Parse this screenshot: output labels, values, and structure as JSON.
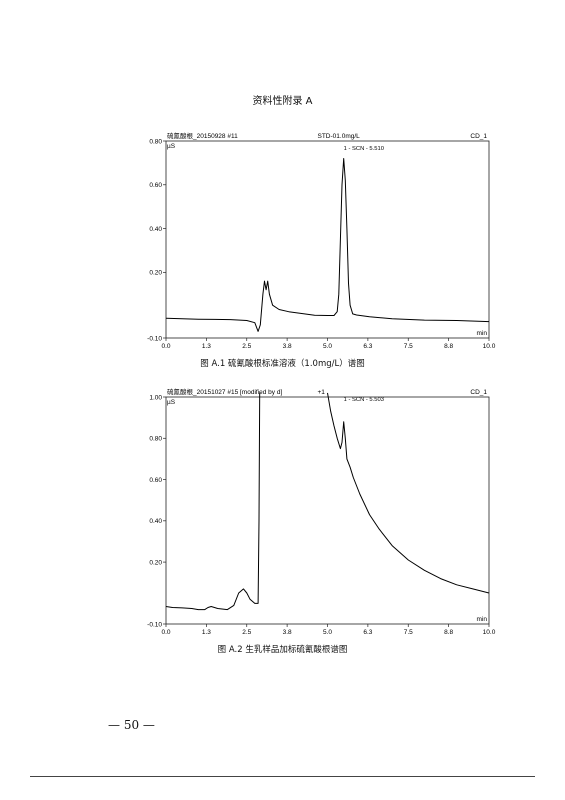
{
  "page": {
    "title": "资料性附录 A",
    "page_number": "— 50 —"
  },
  "chart_data": [
    {
      "type": "line",
      "header_left": "硫氰酸根_20150928 #11",
      "header_center": "STD-01.0mg/L",
      "header_right": "CD_1",
      "ylabel": "µS",
      "xlabel": "min",
      "caption": "图 A.1 硫氰酸根标准溶液（1.0mg/L）谱图",
      "xlim": [
        0,
        10
      ],
      "ylim": [
        -0.1,
        0.8
      ],
      "x_ticks": [
        "0.0",
        "1.3",
        "2.5",
        "3.8",
        "5.0",
        "6.3",
        "7.5",
        "8.8",
        "10.0"
      ],
      "y_ticks": [
        {
          "value": 0.8,
          "label": "0.80"
        },
        {
          "value": 0.6,
          "label": "0.60"
        },
        {
          "value": 0.4,
          "label": "0.40"
        },
        {
          "value": 0.2,
          "label": "0.20"
        },
        {
          "value": -0.1,
          "label": "-0.10"
        }
      ],
      "peak_label": "1 - SCN - 5.510",
      "peak_label_at": [
        5.5,
        0.76
      ],
      "series": [
        {
          "x": [
            0,
            0.5,
            1.0,
            1.5,
            2.0,
            2.5,
            2.75,
            2.85,
            2.92,
            3.0,
            3.05,
            3.1,
            3.15,
            3.2,
            3.3,
            3.5,
            3.8,
            4.2,
            4.6,
            5.0,
            5.2,
            5.3,
            5.35,
            5.4,
            5.45,
            5.5,
            5.55,
            5.6,
            5.65,
            5.7,
            5.78,
            5.9,
            6.3,
            7.0,
            8.0,
            9.0,
            10.0
          ],
          "y": [
            -0.01,
            -0.012,
            -0.014,
            -0.015,
            -0.016,
            -0.02,
            -0.03,
            -0.07,
            -0.04,
            0.1,
            0.16,
            0.12,
            0.16,
            0.1,
            0.05,
            0.03,
            0.02,
            0.012,
            0.004,
            0.003,
            0.003,
            0.02,
            0.1,
            0.35,
            0.6,
            0.72,
            0.62,
            0.4,
            0.15,
            0.05,
            0.01,
            0.005,
            -0.003,
            -0.012,
            -0.018,
            -0.02,
            -0.025
          ]
        }
      ]
    },
    {
      "type": "line",
      "header_left": "硫氰酸根_20151027 #15 [modified by d]",
      "header_center": "+1",
      "header_right": "CD_1",
      "ylabel": "µS",
      "xlabel": "min",
      "caption": "图 A.2 生乳样品加标硫氰酸根谱图",
      "xlim": [
        0,
        10
      ],
      "ylim": [
        -0.1,
        1.0
      ],
      "x_ticks": [
        "0.0",
        "1.3",
        "2.5",
        "3.8",
        "5.0",
        "6.3",
        "7.5",
        "8.8",
        "10.0"
      ],
      "y_ticks": [
        {
          "value": 1.0,
          "label": "1.00"
        },
        {
          "value": 0.8,
          "label": "0.80"
        },
        {
          "value": 0.6,
          "label": "0.60"
        },
        {
          "value": 0.4,
          "label": "0.40"
        },
        {
          "value": 0.2,
          "label": "0.20"
        },
        {
          "value": -0.1,
          "label": "-0.10"
        }
      ],
      "peak_label": "1 - SCN - 5.503",
      "peak_label_at": [
        5.5,
        0.98
      ],
      "series": [
        {
          "x": [
            0,
            0.2,
            0.5,
            0.8,
            1.0,
            1.2,
            1.3,
            1.4,
            1.6,
            1.9,
            2.1,
            2.25,
            2.4,
            2.5,
            2.6,
            2.75,
            2.85,
            2.88,
            2.9
          ],
          "y": [
            -0.015,
            -0.02,
            -0.022,
            -0.025,
            -0.03,
            -0.03,
            -0.02,
            -0.015,
            -0.025,
            -0.03,
            -0.01,
            0.05,
            0.07,
            0.05,
            0.02,
            0.0,
            0.0,
            0.4,
            1.02
          ]
        },
        {
          "x": [
            5.0,
            5.1,
            5.2,
            5.3,
            5.4,
            5.45,
            5.5,
            5.55,
            5.6,
            5.7,
            5.8,
            6.0,
            6.3,
            6.6,
            7.0,
            7.5,
            8.0,
            8.5,
            9.0,
            9.5,
            10.0
          ],
          "y": [
            1.02,
            0.93,
            0.86,
            0.8,
            0.75,
            0.78,
            0.88,
            0.8,
            0.7,
            0.66,
            0.61,
            0.53,
            0.43,
            0.36,
            0.28,
            0.21,
            0.16,
            0.12,
            0.09,
            0.07,
            0.05
          ]
        }
      ]
    }
  ]
}
